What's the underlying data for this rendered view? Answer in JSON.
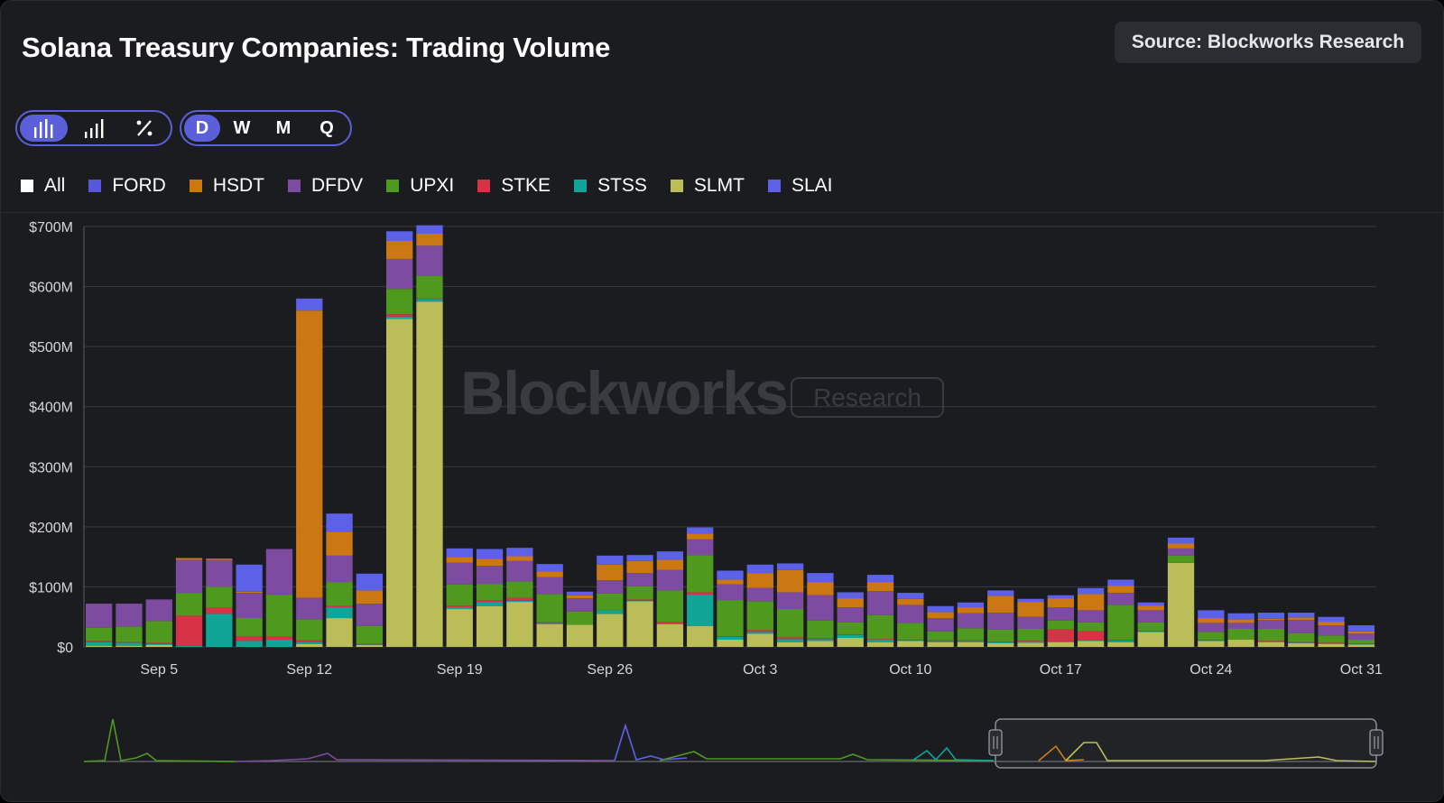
{
  "header": {
    "title": "Solana Treasury Companies: Trading Volume",
    "source": "Source: Blockworks Research"
  },
  "toolbar": {
    "chart_modes": [
      {
        "icon": "bar-chart-icon",
        "active": true
      },
      {
        "icon": "stacked-bar-chart-icon",
        "active": false
      },
      {
        "icon": "percent-icon",
        "active": false
      }
    ],
    "periods": [
      {
        "label": "D",
        "active": true
      },
      {
        "label": "W",
        "active": false
      },
      {
        "label": "M",
        "active": false
      },
      {
        "label": "Q",
        "active": false
      }
    ]
  },
  "watermark": {
    "brand": "Blockworks",
    "tag": "Research"
  },
  "colors": {
    "accent": "#5b5fd9",
    "FORD": "#5558d9",
    "HSDT": "#cc7812",
    "DFDV": "#7d4ca0",
    "UPXI": "#4f9a1e",
    "STKE": "#d63446",
    "STSS": "#10a597",
    "SLMT": "#bbbd58",
    "SLAI": "#5d61e8"
  },
  "chart_data": {
    "type": "bar",
    "stacked": true,
    "title": "Solana Treasury Companies: Trading Volume",
    "legend_position": "top-left",
    "grid": true,
    "ylim": [
      0,
      700
    ],
    "y_unit": "$M",
    "yticks": [
      "$0",
      "$100M",
      "$200M",
      "$300M",
      "$400M",
      "$500M",
      "$600M",
      "$700M"
    ],
    "xticks": [
      "Sep 5",
      "Sep 12",
      "Sep 19",
      "Sep 26",
      "Oct 3",
      "Oct 10",
      "Oct 17",
      "Oct 24",
      "Oct 31"
    ],
    "legend": [
      "All",
      "FORD",
      "HSDT",
      "DFDV",
      "UPXI",
      "STKE",
      "STSS",
      "SLMT",
      "SLAI"
    ],
    "categories": [
      "Sep 3",
      "Sep 4",
      "Sep 5",
      "Sep 8",
      "Sep 9",
      "Sep 10",
      "Sep 11",
      "Sep 12",
      "Sep 15",
      "Sep 16",
      "Sep 17",
      "Sep 18",
      "Sep 19",
      "Sep 22",
      "Sep 23",
      "Sep 24",
      "Sep 25",
      "Sep 26",
      "Sep 29",
      "Sep 30",
      "Oct 1",
      "Oct 2",
      "Oct 3",
      "Oct 6",
      "Oct 7",
      "Oct 8",
      "Oct 9",
      "Oct 10",
      "Oct 13",
      "Oct 14",
      "Oct 15",
      "Oct 16",
      "Oct 17",
      "Oct 20",
      "Oct 21",
      "Oct 22",
      "Oct 23",
      "Oct 24",
      "Oct 27",
      "Oct 28",
      "Oct 29",
      "Oct 30",
      "Oct 31"
    ],
    "series": [
      {
        "name": "SLMT",
        "values": [
          2,
          2,
          3,
          0,
          0,
          0,
          0,
          5,
          48,
          3,
          546,
          575,
          63,
          68,
          75,
          38,
          37,
          55,
          76,
          38,
          35,
          12,
          22,
          8,
          10,
          15,
          8,
          10,
          8,
          8,
          6,
          7,
          8,
          10,
          8,
          25,
          140,
          10,
          12,
          8,
          6,
          5,
          4
        ]
      },
      {
        "name": "STSS",
        "values": [
          6,
          5,
          2,
          2,
          55,
          10,
          12,
          3,
          18,
          1,
          4,
          4,
          3,
          7,
          2,
          2,
          0,
          6,
          1,
          1,
          52,
          5,
          3,
          5,
          3,
          5,
          4,
          1,
          2,
          2,
          2,
          2,
          1,
          1,
          3,
          1,
          0,
          1,
          0,
          1,
          1,
          1,
          1
        ]
      },
      {
        "name": "STKE",
        "values": [
          2,
          1,
          2,
          50,
          10,
          8,
          5,
          3,
          2,
          1,
          4,
          1,
          3,
          3,
          5,
          1,
          0,
          0,
          2,
          2,
          4,
          1,
          3,
          3,
          1,
          1,
          1,
          1,
          1,
          1,
          1,
          1,
          20,
          15,
          1,
          1,
          0,
          1,
          0,
          1,
          1,
          1,
          1
        ]
      },
      {
        "name": "UPXI",
        "values": [
          22,
          26,
          36,
          38,
          35,
          30,
          70,
          35,
          40,
          30,
          42,
          38,
          35,
          27,
          27,
          47,
          22,
          28,
          22,
          53,
          62,
          60,
          48,
          47,
          30,
          20,
          40,
          28,
          15,
          20,
          20,
          20,
          15,
          15,
          58,
          14,
          12,
          13,
          18,
          20,
          15,
          12,
          6
        ]
      },
      {
        "name": "DFDV",
        "values": [
          40,
          38,
          36,
          55,
          45,
          42,
          76,
          36,
          44,
          37,
          50,
          50,
          36,
          30,
          34,
          28,
          22,
          22,
          22,
          34,
          26,
          26,
          22,
          28,
          42,
          25,
          40,
          30,
          22,
          25,
          28,
          20,
          22,
          20,
          20,
          20,
          12,
          15,
          10,
          15,
          22,
          17,
          10
        ]
      },
      {
        "name": "HSDT",
        "values": [
          0,
          0,
          0,
          3,
          2,
          2,
          0,
          478,
          40,
          22,
          30,
          20,
          10,
          12,
          8,
          10,
          5,
          26,
          20,
          17,
          10,
          8,
          25,
          37,
          22,
          15,
          15,
          10,
          10,
          10,
          28,
          25,
          15,
          27,
          12,
          8,
          8,
          8,
          6,
          2,
          4,
          6,
          4
        ]
      },
      {
        "name": "FORD",
        "values": [
          0,
          0,
          0,
          0,
          0,
          0,
          0,
          0,
          0,
          0,
          0,
          0,
          0,
          0,
          0,
          0,
          0,
          0,
          0,
          0,
          0,
          0,
          0,
          0,
          0,
          0,
          0,
          0,
          0,
          0,
          0,
          0,
          0,
          0,
          0,
          0,
          0,
          0,
          0,
          0,
          0,
          0,
          0
        ]
      },
      {
        "name": "SLAI",
        "values": [
          0,
          0,
          0,
          0,
          0,
          45,
          0,
          20,
          30,
          28,
          16,
          14,
          14,
          16,
          14,
          12,
          6,
          15,
          10,
          14,
          10,
          15,
          14,
          11,
          15,
          10,
          12,
          10,
          10,
          8,
          9,
          5,
          5,
          10,
          10,
          5,
          10,
          13,
          10,
          10,
          8,
          8,
          10
        ]
      }
    ],
    "navigator": {
      "type": "line",
      "window_start": "Sep 3",
      "window_end": "Oct 31"
    }
  }
}
